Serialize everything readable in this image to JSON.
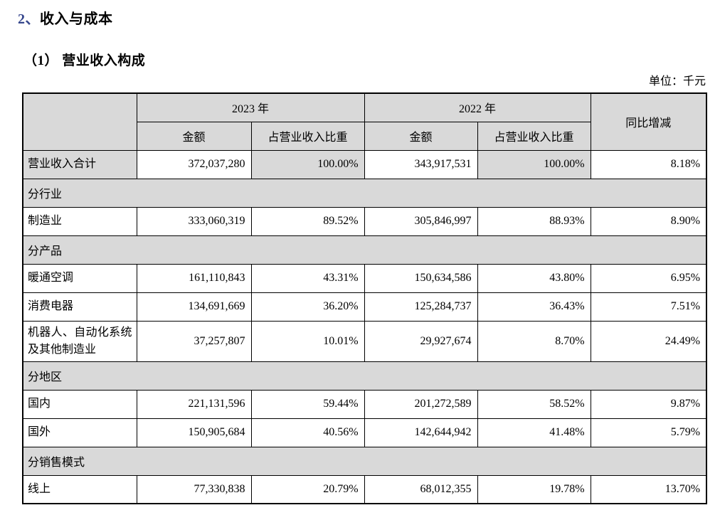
{
  "page": {
    "section_number": "2、",
    "section_name": "收入与成本",
    "subsection_title": "（1） 营业收入构成",
    "unit_note": "单位：千元"
  },
  "colors": {
    "cell_shade": "#d9d9d9",
    "border": "#000000",
    "heading_number": "#35468c",
    "background": "#ffffff"
  },
  "table": {
    "headers": {
      "y2023": "2023 年",
      "y2022": "2022 年",
      "amount": "金额",
      "share": "占营业收入比重",
      "yoy": "同比增减"
    },
    "rows": [
      {
        "type": "data",
        "label": "营业收入合计",
        "a2023": "372,037,280",
        "p2023": "100.00%",
        "a2022": "343,917,531",
        "p2022": "100.00%",
        "yoy": "8.18%",
        "shaded": true
      },
      {
        "type": "section",
        "label": "分行业"
      },
      {
        "type": "data",
        "label": "制造业",
        "a2023": "333,060,319",
        "p2023": "89.52%",
        "a2022": "305,846,997",
        "p2022": "88.93%",
        "yoy": "8.90%"
      },
      {
        "type": "section",
        "label": "分产品"
      },
      {
        "type": "data",
        "label": "暖通空调",
        "a2023": "161,110,843",
        "p2023": "43.31%",
        "a2022": "150,634,586",
        "p2022": "43.80%",
        "yoy": "6.95%"
      },
      {
        "type": "data",
        "label": "消费电器",
        "a2023": "134,691,669",
        "p2023": "36.20%",
        "a2022": "125,284,737",
        "p2022": "36.43%",
        "yoy": "7.51%"
      },
      {
        "type": "data",
        "label": "机器人、自动化系统及其他制造业",
        "a2023": "37,257,807",
        "p2023": "10.01%",
        "a2022": "29,927,674",
        "p2022": "8.70%",
        "yoy": "24.49%"
      },
      {
        "type": "section",
        "label": "分地区"
      },
      {
        "type": "data",
        "label": "国内",
        "a2023": "221,131,596",
        "p2023": "59.44%",
        "a2022": "201,272,589",
        "p2022": "58.52%",
        "yoy": "9.87%"
      },
      {
        "type": "data",
        "label": "国外",
        "a2023": "150,905,684",
        "p2023": "40.56%",
        "a2022": "142,644,942",
        "p2022": "41.48%",
        "yoy": "5.79%"
      },
      {
        "type": "section",
        "label": "分销售模式"
      },
      {
        "type": "data",
        "label": "线上",
        "a2023": "77,330,838",
        "p2023": "20.79%",
        "a2022": "68,012,355",
        "p2022": "19.78%",
        "yoy": "13.70%"
      }
    ]
  }
}
